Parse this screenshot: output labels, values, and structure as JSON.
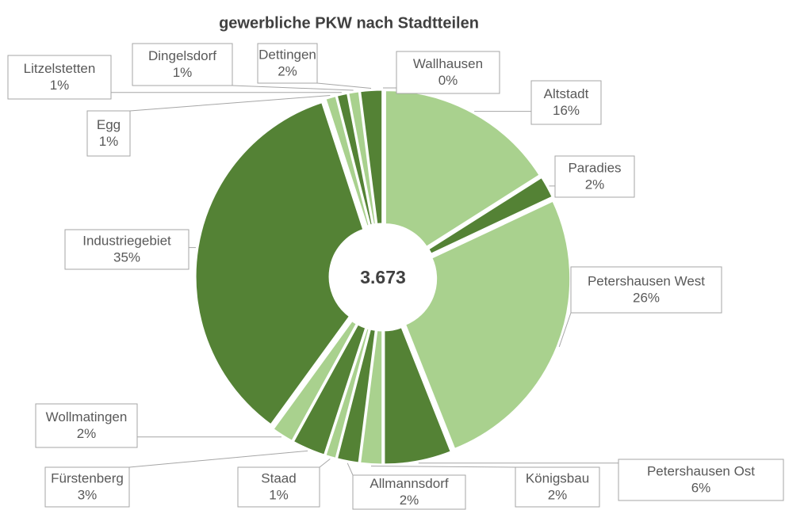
{
  "chart_data": {
    "type": "donut",
    "title": "gewerbliche PKW nach Stadtteilen",
    "center_label": "3.673",
    "categories": [
      "Wallhausen",
      "Altstadt",
      "Paradies",
      "Petershausen West",
      "Petershausen Ost",
      "Königsbau",
      "Allmannsdorf",
      "Staad",
      "Fürstenberg",
      "Wollmatingen",
      "Industriegebiet",
      "Egg",
      "Litzelstetten",
      "Dingelsdorf",
      "Dettingen"
    ],
    "values": [
      0,
      16,
      2,
      26,
      6,
      2,
      2,
      1,
      3,
      2,
      35,
      1,
      1,
      1,
      2
    ],
    "value_labels": [
      "0%",
      "16%",
      "2%",
      "26%",
      "6%",
      "2%",
      "2%",
      "1%",
      "3%",
      "2%",
      "35%",
      "1%",
      "1%",
      "1%",
      "2%"
    ],
    "colors": [
      "#a9d18e",
      "#a9d18e",
      "#548235",
      "#a9d18e",
      "#548235",
      "#a9d18e",
      "#548235",
      "#a9d18e",
      "#548235",
      "#a9d18e",
      "#548235",
      "#a9d18e",
      "#548235",
      "#a9d18e",
      "#548235"
    ]
  }
}
